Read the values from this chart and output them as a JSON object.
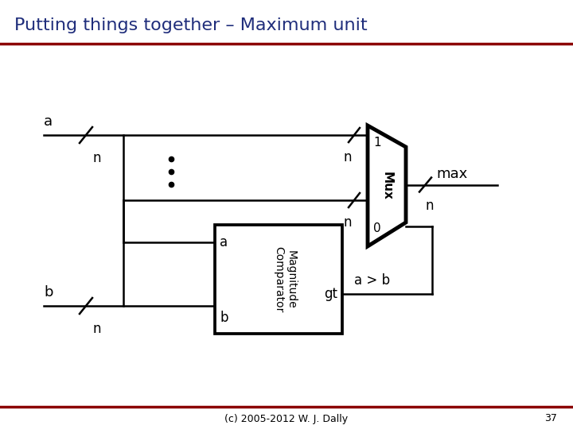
{
  "title": "Putting things together – Maximum unit",
  "title_color": "#1f2d7b",
  "title_fontsize": 16,
  "bg_color": "#ffffff",
  "dark_red": "#8b0000",
  "footer_text": "(c) 2005-2012 W. J. Dally",
  "page_number": "37",
  "line_color": "#000000",
  "lw": 1.8,
  "lw_mux": 3.5
}
